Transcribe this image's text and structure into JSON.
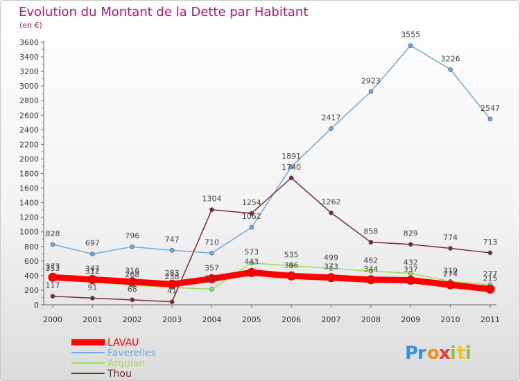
{
  "chart_data": {
    "type": "line",
    "title": "Evolution du Montant de la Dette par Habitant",
    "subtitle": "(en €)",
    "xlabel": "",
    "ylabel": "",
    "categories": [
      "2000",
      "2001",
      "2002",
      "2003",
      "2004",
      "2005",
      "2006",
      "2007",
      "2008",
      "2009",
      "2010",
      "2011"
    ],
    "ylim": [
      0,
      3600
    ],
    "yticks": [
      0,
      200,
      400,
      600,
      800,
      1000,
      1200,
      1400,
      1600,
      1800,
      2000,
      2200,
      2400,
      2600,
      2800,
      3000,
      3200,
      3400,
      3600
    ],
    "grid": false,
    "legend_position": "bottom-left",
    "series": [
      {
        "name": "LAVAU",
        "color": "#ff0000",
        "values": [
          377,
          347,
          316,
          283,
          357,
          443,
          396,
          373,
          344,
          337,
          274,
          215
        ],
        "labels": [
          "377",
          "347",
          "316",
          "283",
          "357",
          "443",
          "396",
          "373",
          "344",
          "337",
          "274",
          "215"
        ],
        "thick": true
      },
      {
        "name": "Faverelles",
        "color": "#6fa8dc",
        "values": [
          828,
          697,
          796,
          747,
          710,
          1062,
          1891,
          2417,
          2923,
          3555,
          3226,
          2547
        ],
        "labels": [
          "828",
          "697",
          "796",
          "747",
          "710",
          "1062",
          "1891",
          "2417",
          "2923",
          "3555",
          "3226",
          "2547"
        ],
        "thick": false
      },
      {
        "name": "Arquian",
        "color": "#99dd55",
        "values": [
          353,
          312,
          268,
          238,
          214,
          573,
          535,
          499,
          462,
          432,
          319,
          277
        ],
        "labels": [
          "353",
          "312",
          "268",
          "238",
          "214",
          "573",
          "535",
          "499",
          "462",
          "432",
          "319",
          "277"
        ],
        "thick": false
      },
      {
        "name": "Thou",
        "color": "#7a2a2a",
        "values": [
          117,
          91,
          68,
          41,
          1304,
          1254,
          1740,
          1262,
          858,
          829,
          774,
          713
        ],
        "labels": [
          "117",
          "91",
          "68",
          "41",
          "1304",
          "1254",
          "1740",
          "1262",
          "858",
          "829",
          "774",
          "713"
        ],
        "thick": false
      }
    ]
  },
  "branding": {
    "logo_letters": [
      "P",
      "r",
      "o",
      "x",
      "i",
      "t",
      "i"
    ],
    "logo_colors": [
      "#3a8fd8",
      "#3a8fd8",
      "#f28c1a",
      "#e23b3b",
      "#8cc63f",
      "#f5c518",
      "#8cc63f"
    ],
    "title_color": "#b01e6a"
  }
}
